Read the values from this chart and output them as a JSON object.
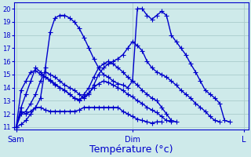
{
  "background_color": "#ceeaea",
  "grid_color": "#aacccc",
  "line_color": "#0000cc",
  "marker": "+",
  "markersize": 4,
  "linewidth": 1.0,
  "xlabel": "Température (°c)",
  "xlabel_fontsize": 9,
  "yticks": [
    11,
    12,
    13,
    14,
    15,
    16,
    17,
    18,
    19,
    20
  ],
  "xtick_labels": [
    "Sam",
    "Dim",
    "L"
  ],
  "xtick_positions": [
    0,
    24,
    47
  ],
  "xlim": [
    -0.5,
    48
  ],
  "ylim": [
    10.8,
    20.5
  ],
  "series": [
    [
      11.0,
      11.2,
      11.5,
      12.0,
      12.5,
      13.2,
      15.5,
      18.2,
      19.3,
      19.5,
      19.5,
      19.3,
      19.0,
      18.5,
      17.8,
      17.0,
      16.2,
      15.5,
      15.0,
      14.8,
      14.5,
      14.3,
      14.2,
      14.0,
      14.5,
      20.0,
      20.0,
      19.5,
      19.2,
      19.5,
      19.8,
      19.5,
      18.0,
      17.5,
      17.0,
      16.5,
      15.8,
      15.2,
      14.5,
      13.8,
      13.5,
      13.2,
      12.8,
      11.5,
      11.4
    ],
    [
      11.0,
      12.0,
      12.2,
      12.8,
      13.5,
      14.5,
      15.2,
      15.0,
      14.8,
      14.5,
      14.2,
      14.0,
      13.8,
      13.5,
      13.2,
      13.5,
      14.2,
      15.0,
      15.5,
      15.8,
      16.0,
      16.2,
      16.5,
      17.0,
      17.5,
      17.2,
      16.8,
      16.0,
      15.5,
      15.2,
      15.0,
      14.8,
      14.5,
      14.2,
      13.8,
      13.5,
      13.2,
      12.8,
      12.5,
      12.2,
      11.8,
      11.5,
      11.4
    ],
    [
      11.0,
      12.5,
      13.5,
      14.5,
      15.5,
      15.2,
      14.8,
      14.5,
      14.2,
      14.0,
      13.8,
      13.5,
      13.2,
      13.0,
      13.5,
      14.0,
      14.8,
      15.5,
      15.8,
      16.0,
      15.8,
      15.5,
      15.2,
      14.8,
      14.5,
      14.2,
      13.8,
      13.5,
      13.2,
      13.0,
      12.5,
      12.0,
      11.5,
      11.4
    ],
    [
      11.0,
      13.8,
      14.5,
      15.2,
      15.3,
      15.0,
      14.8,
      14.6,
      14.3,
      14.0,
      13.8,
      13.5,
      13.2,
      13.1,
      13.3,
      13.6,
      14.0,
      14.3,
      14.5,
      14.4,
      14.2,
      14.0,
      13.8,
      13.5,
      13.3,
      13.0,
      12.8,
      12.5,
      12.3,
      12.1,
      11.8,
      11.5,
      11.4
    ],
    [
      11.0,
      12.2,
      12.0,
      12.2,
      12.5,
      12.5,
      12.3,
      12.2,
      12.2,
      12.2,
      12.2,
      12.2,
      12.2,
      12.3,
      12.5,
      12.5,
      12.5,
      12.5,
      12.5,
      12.5,
      12.5,
      12.5,
      12.2,
      12.0,
      11.8,
      11.6,
      11.5,
      11.4,
      11.3,
      11.4,
      11.4
    ]
  ],
  "series_x": [
    [
      0,
      1,
      2,
      3,
      4,
      5,
      6,
      7,
      8,
      9,
      10,
      11,
      12,
      13,
      14,
      15,
      16,
      17,
      18,
      19,
      20,
      21,
      22,
      23,
      24,
      25,
      26,
      27,
      28,
      29,
      30,
      31,
      32,
      33,
      34,
      35,
      36,
      37,
      38,
      39,
      40,
      41,
      42,
      43,
      44
    ],
    [
      0,
      1,
      2,
      3,
      4,
      5,
      6,
      7,
      8,
      9,
      10,
      11,
      12,
      13,
      14,
      15,
      16,
      17,
      18,
      19,
      20,
      21,
      22,
      23,
      24,
      25,
      26,
      27,
      28,
      29,
      30,
      31,
      32,
      33,
      34,
      35,
      36,
      37,
      38,
      39,
      40,
      41,
      42
    ],
    [
      0,
      1,
      2,
      3,
      4,
      5,
      6,
      7,
      8,
      9,
      10,
      11,
      12,
      13,
      14,
      15,
      16,
      17,
      18,
      19,
      20,
      21,
      22,
      23,
      24,
      25,
      26,
      27,
      28,
      29,
      30,
      31,
      32,
      33
    ],
    [
      0,
      1,
      2,
      3,
      4,
      5,
      6,
      7,
      8,
      9,
      10,
      11,
      12,
      13,
      14,
      15,
      16,
      17,
      18,
      19,
      20,
      21,
      22,
      23,
      24,
      25,
      26,
      27,
      28,
      29,
      30,
      31,
      32
    ],
    [
      0,
      1,
      2,
      3,
      4,
      5,
      6,
      7,
      8,
      9,
      10,
      11,
      12,
      13,
      14,
      15,
      16,
      17,
      18,
      19,
      20,
      21,
      22,
      23,
      24,
      25,
      26,
      27,
      28,
      29,
      30
    ]
  ]
}
